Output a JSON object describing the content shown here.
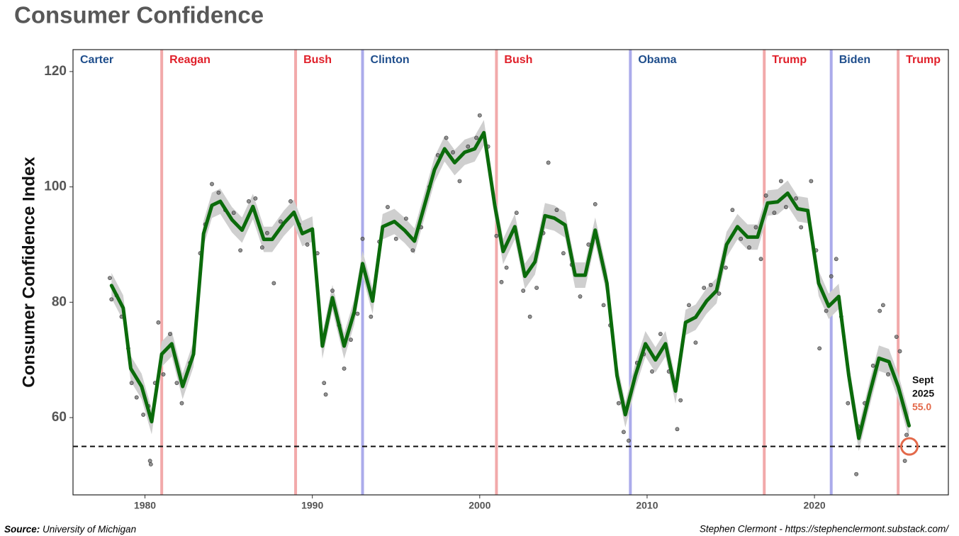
{
  "chart_data": {
    "type": "line",
    "title": "Consumer Confidence",
    "y_label": "Consumer Confidence Index",
    "source_label": "Source:",
    "source": "University of Michigan",
    "credit": "Stephen Clermont - https://stephenclermont.substack.com/",
    "xlim": [
      1975.7,
      2028.0
    ],
    "ylim": [
      46.6,
      123.8
    ],
    "xticks": [
      1980,
      1990,
      2000,
      2010,
      2020
    ],
    "yticks": [
      60,
      80,
      100,
      120
    ],
    "line": {
      "color": "#0b6b0b",
      "band_color": "#cfcfcf",
      "band_halfwidth": 2.2,
      "x": [
        1978.0,
        1978.7,
        1979.15,
        1979.8,
        1980.4,
        1981.0,
        1981.6,
        1982.25,
        1982.9,
        1983.5,
        1984.0,
        1984.5,
        1985.2,
        1985.8,
        1986.45,
        1987.1,
        1987.6,
        1988.3,
        1988.9,
        1989.4,
        1990.0,
        1990.6,
        1991.2,
        1991.9,
        1992.5,
        1993.0,
        1993.6,
        1994.2,
        1994.9,
        1995.5,
        1996.1,
        1996.7,
        1997.3,
        1997.9,
        1998.5,
        1999.1,
        1999.7,
        2000.25,
        2000.9,
        2001.4,
        2002.1,
        2002.7,
        2003.3,
        2003.9,
        2004.45,
        2005.1,
        2005.7,
        2006.3,
        2006.9,
        2007.6,
        2008.2,
        2008.7,
        2009.3,
        2009.9,
        2010.5,
        2011.1,
        2011.7,
        2012.3,
        2012.9,
        2013.55,
        2014.15,
        2014.75,
        2015.4,
        2016.0,
        2016.6,
        2017.2,
        2017.8,
        2018.4,
        2019.0,
        2019.6,
        2020.25,
        2020.85,
        2021.45,
        2022.05,
        2022.65,
        2023.3,
        2023.85,
        2024.45,
        2025.0,
        2025.65
      ],
      "values": [
        82.9,
        79.0,
        68.5,
        65.4,
        59.3,
        71.0,
        72.8,
        65.4,
        71.0,
        91.9,
        96.8,
        97.5,
        94.3,
        92.5,
        96.6,
        90.9,
        90.9,
        93.7,
        95.6,
        91.9,
        92.7,
        72.4,
        80.8,
        72.4,
        78.3,
        86.7,
        80.2,
        93.1,
        94.0,
        92.5,
        90.6,
        96.8,
        103.0,
        106.6,
        104.2,
        106.0,
        106.6,
        109.4,
        96.8,
        88.8,
        93.1,
        84.5,
        87.0,
        95.0,
        94.6,
        93.4,
        84.7,
        84.7,
        92.5,
        83.3,
        67.3,
        60.5,
        67.3,
        72.8,
        70.0,
        72.8,
        64.6,
        76.5,
        77.4,
        80.2,
        82.0,
        90.0,
        93.1,
        91.3,
        91.3,
        97.2,
        97.4,
        98.9,
        96.2,
        95.9,
        83.3,
        79.3,
        81.0,
        67.3,
        56.4,
        64.2,
        70.3,
        69.7,
        65.4,
        58.6
      ]
    },
    "points": {
      "color": "#6e6e6e",
      "x": [
        1977.9,
        1978.0,
        1978.3,
        1978.6,
        1979.0,
        1979.2,
        1979.5,
        1979.9,
        1980.2,
        1980.3,
        1980.35,
        1980.6,
        1980.8,
        1981.1,
        1981.5,
        1981.9,
        1982.2,
        1982.7,
        1983.3,
        1983.6,
        1984.0,
        1984.4,
        1984.8,
        1985.3,
        1985.7,
        1986.2,
        1986.6,
        1987.0,
        1987.3,
        1987.7,
        1988.1,
        1988.7,
        1989.2,
        1989.7,
        1990.3,
        1990.7,
        1990.8,
        1991.2,
        1991.6,
        1991.9,
        1992.3,
        1992.7,
        1993.0,
        1993.5,
        1994.0,
        1994.5,
        1995.0,
        1995.6,
        1996.0,
        1996.5,
        1997.0,
        1997.5,
        1998.0,
        1998.4,
        1998.8,
        1999.3,
        1999.8,
        2000.0,
        2000.5,
        2001.0,
        2001.3,
        2001.6,
        2002.2,
        2002.6,
        2003.0,
        2003.4,
        2003.8,
        2004.1,
        2004.6,
        2005.0,
        2005.5,
        2006.0,
        2006.5,
        2006.9,
        2007.4,
        2007.8,
        2008.3,
        2008.6,
        2008.9,
        2009.4,
        2009.8,
        2010.3,
        2010.8,
        2011.3,
        2011.8,
        2012.0,
        2012.5,
        2012.9,
        2013.4,
        2013.8,
        2014.3,
        2014.7,
        2015.1,
        2015.6,
        2016.1,
        2016.5,
        2016.8,
        2017.1,
        2017.6,
        2018.0,
        2018.3,
        2018.9,
        2019.2,
        2019.8,
        2020.1,
        2020.3,
        2020.7,
        2021.0,
        2021.3,
        2021.6,
        2022.0,
        2022.5,
        2022.6,
        2023.0,
        2023.5,
        2023.9,
        2024.1,
        2024.4,
        2024.9,
        2025.1,
        2025.4,
        2025.5
      ],
      "values": [
        84.2,
        80.5,
        81.2,
        77.5,
        72.0,
        66.0,
        63.5,
        60.5,
        62.0,
        52.5,
        51.9,
        66.0,
        76.5,
        67.5,
        74.5,
        66.0,
        62.5,
        69.5,
        88.5,
        93.5,
        100.5,
        99.0,
        96.0,
        95.5,
        89.0,
        97.5,
        98.0,
        89.5,
        92.0,
        83.3,
        94.0,
        97.5,
        93.5,
        90.0,
        88.5,
        66.0,
        64.0,
        82.0,
        76.0,
        68.5,
        73.5,
        78.0,
        91.0,
        77.5,
        90.5,
        96.5,
        91.0,
        94.5,
        89.0,
        93.0,
        100.0,
        105.5,
        108.5,
        106.0,
        101.0,
        107.0,
        108.5,
        112.4,
        107.0,
        91.5,
        83.5,
        86.0,
        95.5,
        82.0,
        77.5,
        82.5,
        92.0,
        104.2,
        96.0,
        88.5,
        86.5,
        81.0,
        90.0,
        97.0,
        79.5,
        76.0,
        62.5,
        57.5,
        56.0,
        69.5,
        71.0,
        68.0,
        74.5,
        68.0,
        58.0,
        63.0,
        79.5,
        73.0,
        82.5,
        83.0,
        81.5,
        86.0,
        96.0,
        91.0,
        89.5,
        93.0,
        87.5,
        98.5,
        95.5,
        101.0,
        96.5,
        98.0,
        93.0,
        101.0,
        89.0,
        72.0,
        78.5,
        84.5,
        87.5,
        77.5,
        62.5,
        50.2,
        58.5,
        62.5,
        69.0,
        78.5,
        79.5,
        67.5,
        74.0,
        71.5,
        52.5,
        57.0
      ]
    },
    "terms": [
      {
        "name": "Carter",
        "color": "#1f4e8c",
        "line_color": "#ababeb"
      },
      {
        "name": "Reagan",
        "color": "#e0202a",
        "line_color": "#f2a9aa",
        "start": 1981.0
      },
      {
        "name": "Bush",
        "color": "#e0202a",
        "line_color": "#f2a9aa",
        "start": 1989.0
      },
      {
        "name": "Clinton",
        "color": "#1f4e8c",
        "line_color": "#ababeb",
        "start": 1993.0
      },
      {
        "name": "Bush",
        "color": "#e0202a",
        "line_color": "#f2a9aa",
        "start": 2001.0
      },
      {
        "name": "Obama",
        "color": "#1f4e8c",
        "line_color": "#ababeb",
        "start": 2009.0
      },
      {
        "name": "Trump",
        "color": "#e0202a",
        "line_color": "#f2a9aa",
        "start": 2017.0
      },
      {
        "name": "Biden",
        "color": "#1f4e8c",
        "line_color": "#ababeb",
        "start": 2021.0
      },
      {
        "name": "Trump",
        "color": "#e0202a",
        "line_color": "#f2a9aa",
        "start": 2025.0
      }
    ],
    "reference_y": 55,
    "highlight": {
      "x": 2025.67,
      "value": 55,
      "label": "55.0",
      "text": [
        "Sept",
        "2025"
      ],
      "color": "#e3694a"
    }
  }
}
